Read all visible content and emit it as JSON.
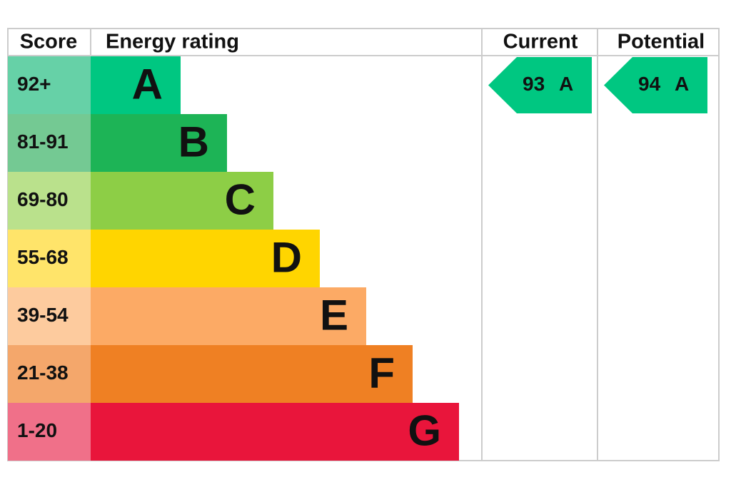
{
  "header": {
    "score": "Score",
    "rating": "Energy rating",
    "current": "Current",
    "potential": "Potential"
  },
  "bands": [
    {
      "score": "92+",
      "letter": "A",
      "color": "#00c781",
      "score_color": "#66d1a7"
    },
    {
      "score": "81-91",
      "letter": "B",
      "color": "#1db456",
      "score_color": "#74c993"
    },
    {
      "score": "69-80",
      "letter": "C",
      "color": "#8dce46",
      "score_color": "#bae18c"
    },
    {
      "score": "55-68",
      "letter": "D",
      "color": "#ffd500",
      "score_color": "#ffe46a"
    },
    {
      "score": "39-54",
      "letter": "E",
      "color": "#fcaa65",
      "score_color": "#fdcb9e"
    },
    {
      "score": "21-38",
      "letter": "F",
      "color": "#ef8023",
      "score_color": "#f4a76b"
    },
    {
      "score": "1-20",
      "letter": "G",
      "color": "#e9153b",
      "score_color": "#f07089"
    }
  ],
  "current": {
    "value": 93,
    "letter": "A"
  },
  "potential": {
    "value": 94,
    "letter": "A"
  }
}
